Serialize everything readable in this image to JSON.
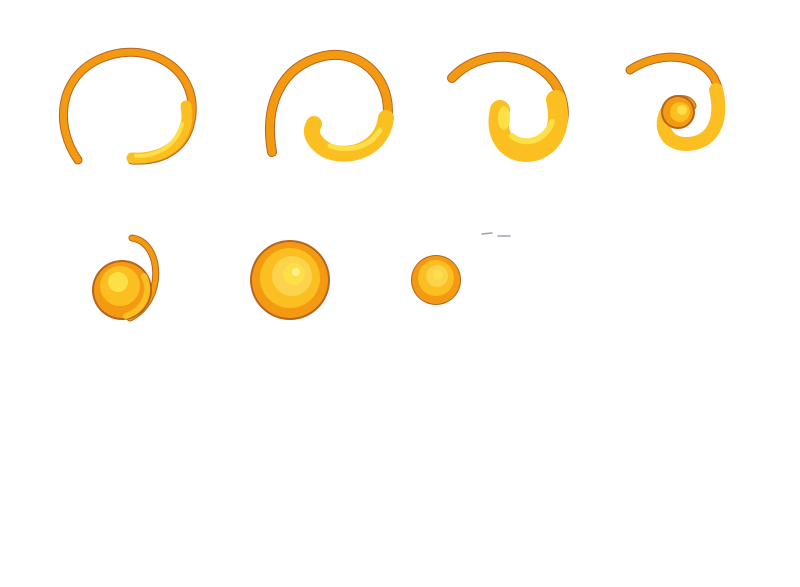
{
  "sprite_sheet": {
    "frames": [
      {
        "id": 1,
        "stage": "open-ring"
      },
      {
        "id": 2,
        "stage": "ring-curling"
      },
      {
        "id": 3,
        "stage": "ring-tightening"
      },
      {
        "id": 4,
        "stage": "small-swirl"
      },
      {
        "id": 5,
        "stage": "comma-blob"
      },
      {
        "id": 6,
        "stage": "full-orb"
      },
      {
        "id": 7,
        "stage": "small-orb"
      }
    ],
    "colors": {
      "outer": "#f39a12",
      "mid": "#fbbf22",
      "inner": "#fde047",
      "edge": "#b5651d",
      "shadow": "#3a2a1a"
    }
  }
}
